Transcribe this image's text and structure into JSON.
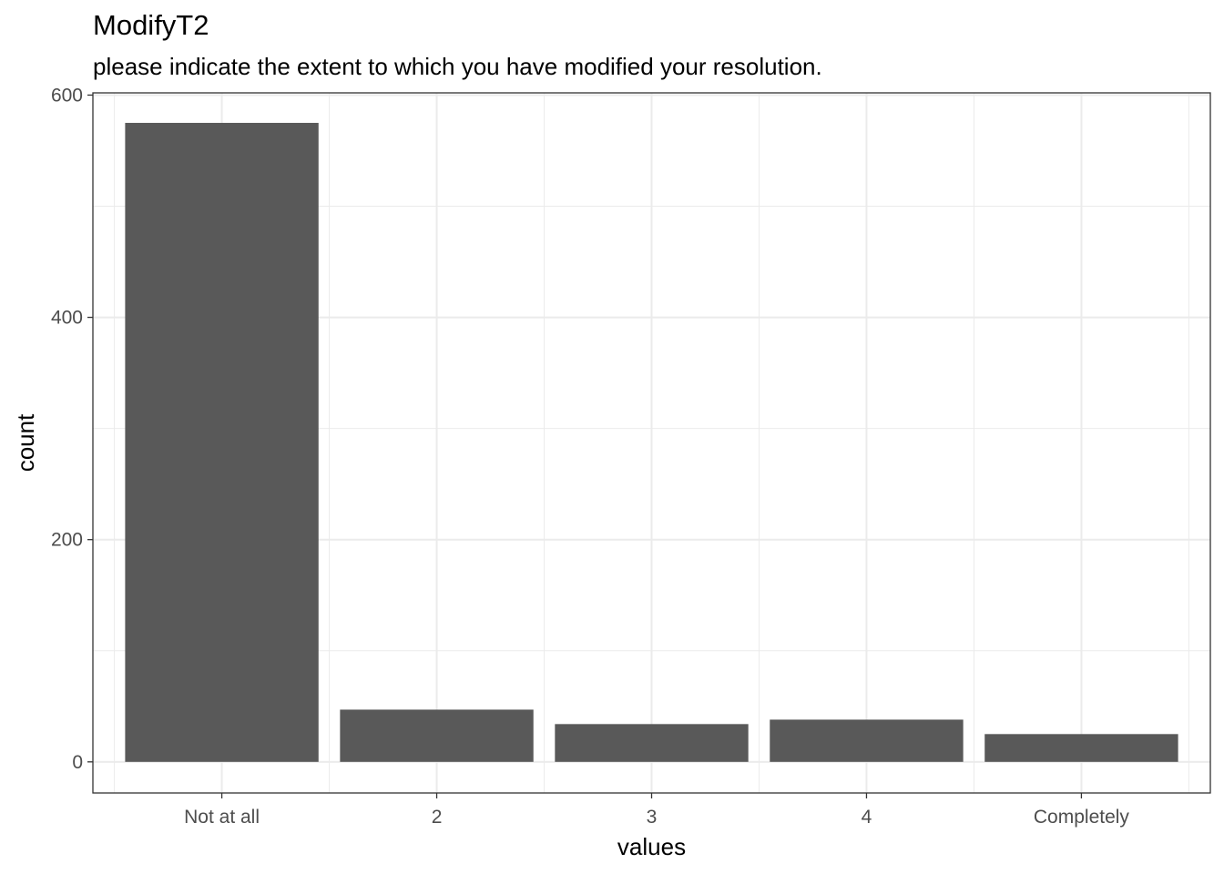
{
  "chart_data": {
    "type": "bar",
    "title": "ModifyT2",
    "subtitle": "please indicate the extent to which you have modified your resolution.",
    "xlabel": "values",
    "ylabel": "count",
    "categories": [
      "Not at all",
      "2",
      "3",
      "4",
      "Completely"
    ],
    "values": [
      575,
      47,
      34,
      38,
      25
    ],
    "ylim": [
      -28,
      602
    ],
    "yticks": [
      0,
      200,
      400,
      600
    ],
    "grid": true,
    "bar_color": "#595959",
    "grid_color": "#ebebeb",
    "panel_border_color": "#333333"
  }
}
